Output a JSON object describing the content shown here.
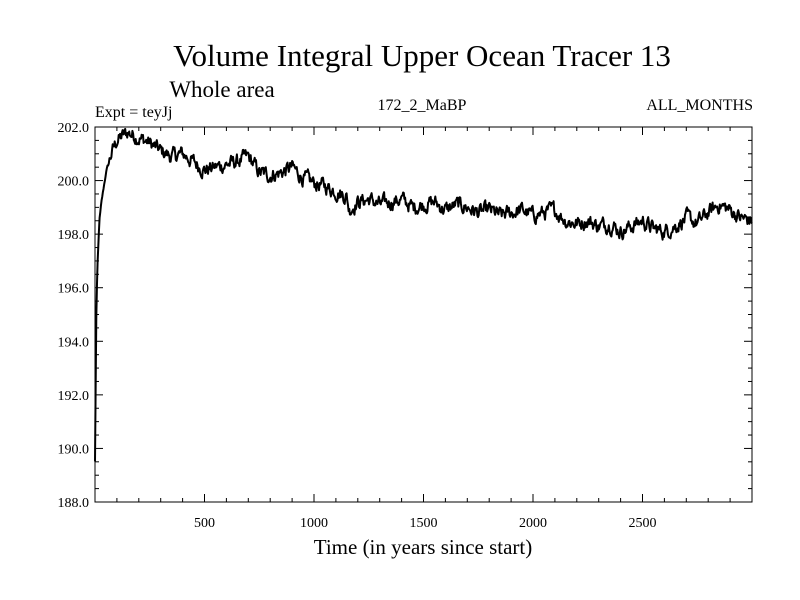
{
  "chart_data": {
    "type": "line",
    "title": "Volume Integral Upper Ocean Tracer 13",
    "subtitle": "Whole area",
    "annotations": {
      "left": "Expt = teyJj",
      "center": "172_2_MaBP",
      "right": "ALL_MONTHS"
    },
    "xlabel": "Time (in years since start)",
    "ylabel": "",
    "xlim": [
      0,
      3000
    ],
    "ylim": [
      188.0,
      202.0
    ],
    "xticks": [
      500,
      1000,
      1500,
      2000,
      2500
    ],
    "xtick_labels": [
      "500",
      "1000",
      "1500",
      "2000",
      "2500"
    ],
    "yticks": [
      188,
      190,
      192,
      194,
      196,
      198,
      200,
      202
    ],
    "ytick_labels": [
      "188.0",
      "190.0",
      "192.0",
      "194.0",
      "196.0",
      "198.0",
      "200.0",
      "202.0"
    ],
    "grid": false,
    "series": [
      {
        "name": "Volume Integral Upper Ocean Tracer 13",
        "color": "#000000",
        "x": [
          0,
          5,
          10,
          20,
          30,
          50,
          75,
          100,
          150,
          200,
          250,
          300,
          350,
          400,
          450,
          500,
          550,
          600,
          650,
          700,
          750,
          800,
          850,
          900,
          950,
          1000,
          1050,
          1100,
          1150,
          1160,
          1200,
          1250,
          1300,
          1350,
          1400,
          1450,
          1500,
          1550,
          1600,
          1650,
          1700,
          1750,
          1800,
          1850,
          1900,
          1950,
          2000,
          2050,
          2100,
          2150,
          2200,
          2250,
          2300,
          2350,
          2400,
          2450,
          2500,
          2550,
          2600,
          2650,
          2700,
          2750,
          2800,
          2850,
          2900,
          2950,
          3000
        ],
        "y": [
          189.5,
          194.5,
          196.5,
          198.5,
          199.2,
          200.3,
          201.0,
          201.5,
          201.8,
          201.6,
          201.4,
          201.1,
          200.9,
          201.0,
          200.7,
          200.4,
          200.5,
          200.6,
          200.7,
          200.9,
          200.3,
          200.2,
          200.3,
          200.5,
          200.1,
          199.9,
          199.8,
          199.6,
          199.4,
          198.9,
          199.2,
          199.3,
          199.1,
          199.2,
          199.3,
          199.0,
          199.1,
          199.2,
          198.9,
          199.1,
          199.0,
          198.8,
          198.9,
          198.7,
          198.8,
          198.9,
          198.7,
          198.8,
          198.9,
          198.5,
          198.4,
          198.5,
          198.3,
          198.4,
          198.1,
          198.3,
          198.5,
          198.2,
          198.1,
          198.3,
          198.6,
          198.4,
          198.8,
          199.1,
          198.9,
          198.6,
          198.5
        ]
      }
    ]
  }
}
